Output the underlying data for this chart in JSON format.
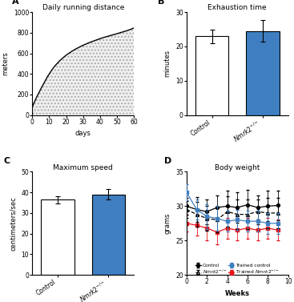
{
  "panel_A": {
    "title": "Daily running distance",
    "xlabel": "days",
    "ylabel": "meters",
    "xlim": [
      0,
      60
    ],
    "ylim": [
      0,
      1000
    ],
    "xticks": [
      0,
      10,
      20,
      30,
      40,
      50,
      60
    ],
    "yticks": [
      0,
      200,
      400,
      600,
      800,
      1000
    ],
    "curve_x": [
      0,
      1,
      2,
      3,
      4,
      5,
      6,
      7,
      8,
      9,
      10,
      12,
      14,
      16,
      18,
      20,
      22,
      24,
      26,
      28,
      30,
      32,
      34,
      36,
      38,
      40,
      42,
      44,
      46,
      48,
      50,
      52,
      54,
      56,
      58,
      60
    ],
    "curve_y": [
      80,
      120,
      155,
      190,
      220,
      255,
      285,
      315,
      345,
      375,
      400,
      450,
      490,
      525,
      555,
      582,
      605,
      626,
      645,
      662,
      678,
      692,
      706,
      718,
      730,
      742,
      753,
      762,
      772,
      781,
      790,
      800,
      810,
      820,
      832,
      845
    ],
    "fill_color": "#f0f0f0",
    "line_color": "#000000",
    "hatch": "...."
  },
  "panel_B": {
    "title": "Exhaustion time",
    "ylabel": "minutes",
    "xlim": [
      -0.5,
      1.5
    ],
    "ylim": [
      0,
      30
    ],
    "yticks": [
      0,
      10,
      20,
      30
    ],
    "values": [
      23.0,
      24.5
    ],
    "errors": [
      2.0,
      3.2
    ],
    "bar_colors": [
      "#ffffff",
      "#3f7fc1"
    ],
    "bar_edge_color": "#000000"
  },
  "panel_C": {
    "title": "Maximum speed",
    "ylabel": "centimeters/sec",
    "xlim": [
      -0.5,
      1.5
    ],
    "ylim": [
      0,
      50
    ],
    "yticks": [
      0,
      10,
      20,
      30,
      40,
      50
    ],
    "values": [
      36.5,
      39.0
    ],
    "errors": [
      1.8,
      2.5
    ],
    "bar_colors": [
      "#ffffff",
      "#3f7fc1"
    ],
    "bar_edge_color": "#000000"
  },
  "panel_D": {
    "title": "Body weight",
    "xlabel": "Weeks",
    "ylabel": "grams",
    "xlim": [
      0,
      10
    ],
    "ylim": [
      20,
      35
    ],
    "xticks": [
      0,
      2,
      4,
      6,
      8,
      10
    ],
    "yticks": [
      20,
      25,
      30,
      35
    ],
    "weeks": [
      0,
      1,
      2,
      3,
      4,
      5,
      6,
      7,
      8,
      9
    ],
    "control_y": [
      30.0,
      29.5,
      29.2,
      29.8,
      30.0,
      29.8,
      30.2,
      29.8,
      30.0,
      30.1
    ],
    "control_err": [
      1.2,
      1.8,
      1.8,
      1.8,
      2.2,
      2.2,
      2.2,
      1.8,
      2.2,
      2.2
    ],
    "nmrk2_y": [
      29.5,
      28.8,
      28.2,
      28.0,
      29.2,
      28.8,
      28.8,
      29.2,
      29.0,
      29.0
    ],
    "nmrk2_err": [
      1.2,
      1.8,
      1.8,
      1.8,
      2.2,
      2.2,
      2.2,
      1.8,
      2.2,
      2.2
    ],
    "trained_ctrl_y": [
      32.0,
      29.5,
      28.5,
      28.2,
      27.8,
      28.0,
      27.8,
      27.8,
      27.5,
      27.5
    ],
    "trained_ctrl_err": [
      1.2,
      1.5,
      1.8,
      1.8,
      1.5,
      1.5,
      1.5,
      1.5,
      1.5,
      1.5
    ],
    "trained_nmrk2_y": [
      27.5,
      27.2,
      26.8,
      26.2,
      26.8,
      26.5,
      26.8,
      26.5,
      26.8,
      26.5
    ],
    "trained_nmrk2_err": [
      1.2,
      1.5,
      1.8,
      1.8,
      1.5,
      1.5,
      1.5,
      1.5,
      1.5,
      1.5
    ],
    "colors": {
      "control": "#000000",
      "nmrk2": "#000000",
      "trained_ctrl": "#3f7fc1",
      "trained_nmrk2": "#e8151b"
    }
  },
  "figure_bg": "#ffffff",
  "label_fontsize": 6,
  "title_fontsize": 6.5,
  "tick_fontsize": 5.5,
  "panel_label_fontsize": 8
}
